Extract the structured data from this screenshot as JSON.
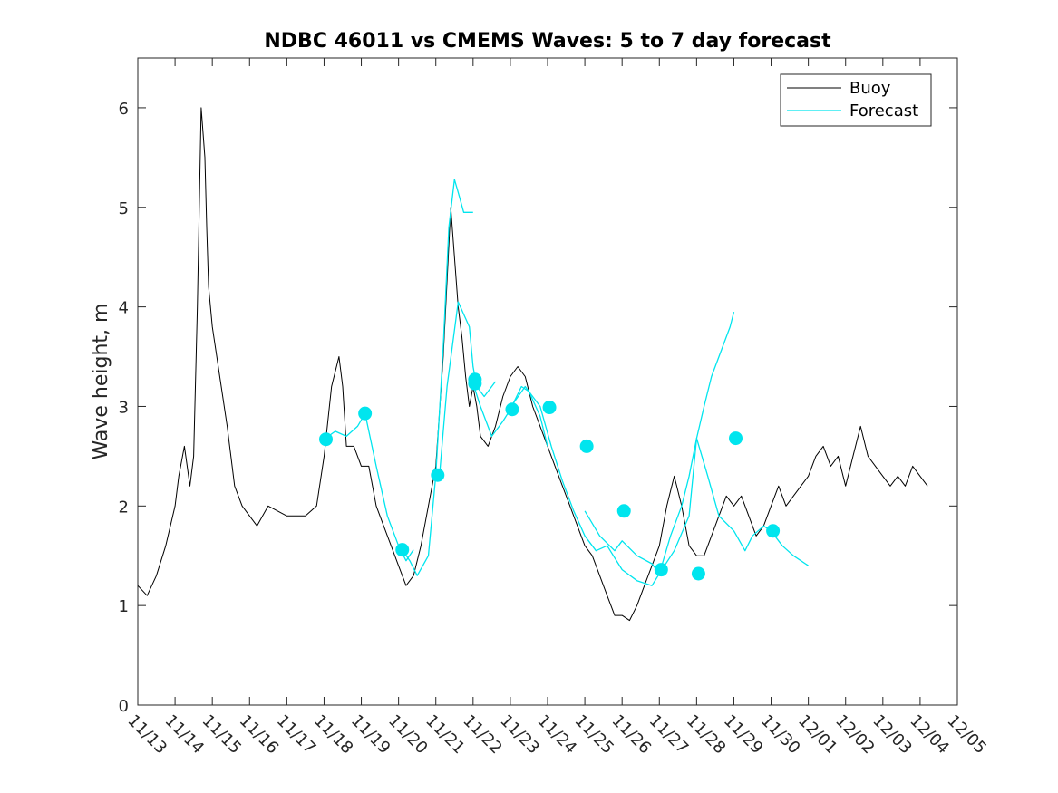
{
  "chart_data": {
    "type": "line",
    "title": "NDBC 46011 vs CMEMS Waves: 5 to 7 day forecast",
    "xlabel": "",
    "ylabel": "Wave height, m",
    "ylim": [
      0,
      6.5
    ],
    "xlim": [
      0,
      22
    ],
    "y_ticks": [
      0,
      1,
      2,
      3,
      4,
      5,
      6
    ],
    "x_tick_labels": [
      "11/13",
      "11/14",
      "11/15",
      "11/16",
      "11/17",
      "11/18",
      "11/19",
      "11/20",
      "11/21",
      "11/22",
      "11/23",
      "11/24",
      "11/25",
      "11/26",
      "11/27",
      "11/28",
      "11/29",
      "11/30",
      "12/01",
      "12/02",
      "12/03",
      "12/04",
      "12/05"
    ],
    "legend": {
      "position": "top-right",
      "entries": [
        "Buoy",
        "Forecast"
      ]
    },
    "colors": {
      "buoy": "#000000",
      "forecast": "#00e5ee"
    },
    "series": [
      {
        "name": "Buoy",
        "x": [
          0,
          0.25,
          0.5,
          0.75,
          1.0,
          1.1,
          1.25,
          1.4,
          1.5,
          1.6,
          1.7,
          1.8,
          1.85,
          1.9,
          2.0,
          2.2,
          2.4,
          2.6,
          2.8,
          3.0,
          3.2,
          3.5,
          4.0,
          4.5,
          4.8,
          5.0,
          5.2,
          5.4,
          5.5,
          5.6,
          5.8,
          6.0,
          6.2,
          6.4,
          6.6,
          6.8,
          7.0,
          7.2,
          7.4,
          7.6,
          7.8,
          8.0,
          8.2,
          8.4,
          8.6,
          8.7,
          8.8,
          8.9,
          9.0,
          9.1,
          9.2,
          9.4,
          9.6,
          9.8,
          10.0,
          10.2,
          10.4,
          10.6,
          10.8,
          11.0,
          11.2,
          11.4,
          11.6,
          11.8,
          12.0,
          12.2,
          12.4,
          12.6,
          12.8,
          13.0,
          13.2,
          13.4,
          13.6,
          13.8,
          14.0,
          14.2,
          14.4,
          14.6,
          14.8,
          15.0,
          15.2,
          15.4,
          15.6,
          15.8,
          16.0,
          16.2,
          16.4,
          16.6,
          16.8,
          17.0,
          17.2,
          17.4,
          17.6,
          17.8,
          18.0,
          18.2,
          18.4,
          18.6,
          18.8,
          19.0,
          19.2,
          19.4,
          19.6,
          19.8,
          20.0,
          20.2,
          20.4,
          20.6,
          20.8,
          21.0,
          21.2
        ],
        "y": [
          1.2,
          1.1,
          1.3,
          1.6,
          2.0,
          2.3,
          2.6,
          2.2,
          2.5,
          4.0,
          6.0,
          5.5,
          4.8,
          4.2,
          3.8,
          3.3,
          2.8,
          2.2,
          2.0,
          1.9,
          1.8,
          2.0,
          1.9,
          1.9,
          2.0,
          2.5,
          3.2,
          3.5,
          3.2,
          2.6,
          2.6,
          2.4,
          2.4,
          2.0,
          1.8,
          1.6,
          1.4,
          1.2,
          1.3,
          1.6,
          2.0,
          2.4,
          3.5,
          5.0,
          4.0,
          3.7,
          3.3,
          3.0,
          3.2,
          3.0,
          2.7,
          2.6,
          2.8,
          3.1,
          3.3,
          3.4,
          3.3,
          3.0,
          2.8,
          2.6,
          2.4,
          2.2,
          2.0,
          1.8,
          1.6,
          1.5,
          1.3,
          1.1,
          0.9,
          0.9,
          0.85,
          1.0,
          1.2,
          1.4,
          1.6,
          2.0,
          2.3,
          2.0,
          1.6,
          1.5,
          1.5,
          1.7,
          1.9,
          2.1,
          2.0,
          2.1,
          1.9,
          1.7,
          1.8,
          2.0,
          2.2,
          2.0,
          2.1,
          2.2,
          2.3,
          2.5,
          2.6,
          2.4,
          2.5,
          2.2,
          2.5,
          2.8,
          2.5,
          2.4,
          2.3,
          2.2,
          2.3,
          2.2,
          2.4,
          2.3,
          2.2
        ]
      },
      {
        "name": "Forecast",
        "segments": [
          {
            "x": [
              5.0,
              5.3,
              5.6,
              5.9,
              6.1,
              6.4,
              6.7,
              7.0,
              7.2,
              7.4
            ],
            "y": [
              2.67,
              2.75,
              2.7,
              2.8,
              2.93,
              2.4,
              1.9,
              1.6,
              1.45,
              1.56
            ]
          },
          {
            "x": [
              7.1,
              7.3,
              7.5,
              7.8,
              8.0,
              8.2,
              8.35,
              8.5,
              8.6,
              8.75,
              9.0
            ],
            "y": [
              1.56,
              1.45,
              1.3,
              1.5,
              2.31,
              3.6,
              4.8,
              5.28,
              5.15,
              4.95,
              4.95
            ]
          },
          {
            "x": [
              8.1,
              8.3,
              8.6,
              8.9,
              9.0,
              9.1,
              9.3,
              9.6
            ],
            "y": [
              2.31,
              3.2,
              4.05,
              3.8,
              3.4,
              3.2,
              3.1,
              3.25
            ]
          },
          {
            "x": [
              9.0,
              9.2,
              9.5,
              9.8,
              10.0,
              10.3,
              10.5,
              10.8,
              11.0
            ],
            "y": [
              3.23,
              3.0,
              2.7,
              2.85,
              2.97,
              3.2,
              3.15,
              2.9,
              2.6
            ]
          },
          {
            "x": [
              10.0,
              10.4,
              10.8,
              11.1,
              11.4,
              11.7,
              12.0,
              12.3,
              12.6,
              13.0,
              13.4,
              13.8,
              14.0,
              14.3,
              14.6,
              14.8,
              15.0,
              15.2,
              15.4,
              15.7,
              15.9,
              16.0
            ],
            "y": [
              2.99,
              3.2,
              3.0,
              2.6,
              2.25,
              1.95,
              1.7,
              1.55,
              1.6,
              1.36,
              1.25,
              1.2,
              1.32,
              1.7,
              2.0,
              2.3,
              2.68,
              3.0,
              3.3,
              3.6,
              3.8,
              3.95
            ]
          },
          {
            "x": [
              12.0,
              12.4,
              12.8,
              13.0,
              13.4,
              13.8,
              14.0,
              14.4,
              14.8,
              15.0,
              15.3,
              15.6,
              16.0,
              16.3,
              16.5,
              16.8,
              17.0,
              17.3,
              17.6,
              18.0
            ],
            "y": [
              1.95,
              1.7,
              1.55,
              1.65,
              1.5,
              1.42,
              1.32,
              1.55,
              1.9,
              2.68,
              2.3,
              1.9,
              1.75,
              1.55,
              1.7,
              1.8,
              1.75,
              1.6,
              1.5,
              1.4
            ]
          }
        ]
      }
    ],
    "markers": {
      "name": "Forecast day-5 points",
      "x": [
        5.05,
        6.1,
        7.1,
        8.05,
        9.05,
        9.05,
        10.05,
        11.05,
        12.05,
        13.05,
        14.05,
        15.05,
        16.05,
        17.05
      ],
      "y": [
        2.67,
        2.93,
        1.56,
        2.31,
        3.27,
        3.23,
        2.97,
        2.99,
        2.6,
        1.95,
        1.36,
        1.32,
        2.68,
        1.75
      ]
    }
  }
}
